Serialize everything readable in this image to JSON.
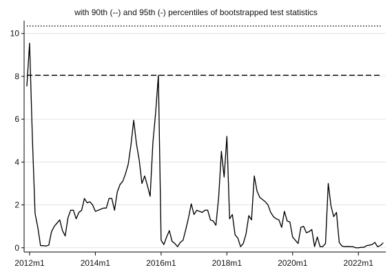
{
  "chart_data": {
    "type": "line",
    "title": "with 90th (--) and 95th (-) percentiles of bootstrapped test statistics",
    "xlabel": "",
    "ylabel": "",
    "grid": true,
    "legend": "none",
    "x_tick_labels": [
      "2012m1",
      "2014m1",
      "2016m1",
      "2018m1",
      "2020m1",
      "2022m1"
    ],
    "x_ticks": [
      "2012-01",
      "2014-01",
      "2016-01",
      "2018-01",
      "2020-01",
      "2022-01"
    ],
    "xlim": [
      "2011-11",
      "2022-11"
    ],
    "y_ticks": [
      0,
      2,
      4,
      6,
      8,
      10
    ],
    "ylim": [
      -0.2,
      10.6
    ],
    "reference_lines": [
      {
        "style": "dashed",
        "value": 8.05
      },
      {
        "style": "dotted",
        "value": 10.35
      }
    ],
    "colors": {
      "line": "#000000",
      "grid": "#e3e3e3",
      "axis": "#000000"
    },
    "series": [
      {
        "x": [
          "2011-12",
          "2012-01",
          "2012-02",
          "2012-03",
          "2012-04",
          "2012-05",
          "2012-06",
          "2012-07",
          "2012-08",
          "2012-09",
          "2012-10",
          "2012-11",
          "2012-12",
          "2013-01",
          "2013-02",
          "2013-03",
          "2013-04",
          "2013-05",
          "2013-06",
          "2013-07",
          "2013-08",
          "2013-09",
          "2013-10",
          "2013-11",
          "2013-12",
          "2014-01",
          "2014-02",
          "2014-03",
          "2014-04",
          "2014-05",
          "2014-06",
          "2014-07",
          "2014-08",
          "2014-09",
          "2014-10",
          "2014-11",
          "2014-12",
          "2015-01",
          "2015-02",
          "2015-03",
          "2015-04",
          "2015-05",
          "2015-06",
          "2015-07",
          "2015-08",
          "2015-09",
          "2015-10",
          "2015-11",
          "2015-12",
          "2016-01",
          "2016-02",
          "2016-03",
          "2016-04",
          "2016-05",
          "2016-06",
          "2016-07",
          "2016-08",
          "2016-09",
          "2016-10",
          "2016-11",
          "2016-12",
          "2017-01",
          "2017-02",
          "2017-03",
          "2017-04",
          "2017-05",
          "2017-06",
          "2017-07",
          "2017-08",
          "2017-09",
          "2017-10",
          "2017-11",
          "2017-12",
          "2018-01",
          "2018-02",
          "2018-03",
          "2018-04",
          "2018-05",
          "2018-06",
          "2018-07",
          "2018-08",
          "2018-09",
          "2018-10",
          "2018-11",
          "2018-12",
          "2019-01",
          "2019-02",
          "2019-03",
          "2019-04",
          "2019-05",
          "2019-06",
          "2019-07",
          "2019-08",
          "2019-09",
          "2019-10",
          "2019-11",
          "2019-12",
          "2020-01",
          "2020-02",
          "2020-03",
          "2020-04",
          "2020-05",
          "2020-06",
          "2020-07",
          "2020-08",
          "2020-09",
          "2020-10",
          "2020-11",
          "2020-12",
          "2021-01",
          "2021-02",
          "2021-03",
          "2021-04",
          "2021-05",
          "2021-06",
          "2021-07",
          "2021-08",
          "2021-09",
          "2021-10",
          "2021-11",
          "2021-12",
          "2022-01",
          "2022-02",
          "2022-03",
          "2022-04",
          "2022-05",
          "2022-06",
          "2022-07",
          "2022-08",
          "2022-09",
          "2022-10"
        ],
        "values": [
          7.55,
          9.55,
          5.2,
          1.6,
          0.95,
          0.1,
          0.1,
          0.08,
          0.12,
          0.75,
          1.0,
          1.15,
          1.3,
          0.8,
          0.55,
          1.4,
          1.75,
          1.75,
          1.35,
          1.65,
          1.75,
          2.3,
          2.1,
          2.15,
          2.0,
          1.7,
          1.75,
          1.8,
          1.85,
          1.85,
          2.3,
          2.3,
          1.75,
          2.6,
          2.95,
          3.1,
          3.45,
          3.9,
          4.8,
          5.95,
          4.85,
          4.1,
          3.0,
          3.35,
          2.9,
          2.4,
          4.9,
          6.3,
          8.05,
          0.35,
          0.15,
          0.5,
          0.8,
          0.3,
          0.2,
          0.05,
          0.25,
          0.35,
          0.85,
          1.4,
          2.05,
          1.55,
          1.75,
          1.7,
          1.65,
          1.75,
          1.75,
          1.3,
          1.25,
          1.05,
          2.35,
          4.5,
          3.3,
          5.2,
          1.35,
          1.55,
          0.6,
          0.45,
          0.05,
          0.2,
          0.65,
          1.5,
          1.3,
          3.35,
          2.65,
          2.35,
          2.25,
          2.15,
          2.0,
          1.65,
          1.45,
          1.35,
          1.3,
          0.95,
          1.7,
          1.25,
          1.2,
          0.5,
          0.35,
          0.2,
          0.95,
          1.0,
          0.7,
          0.75,
          0.85,
          0.05,
          0.5,
          0.05,
          0.05,
          0.2,
          3.0,
          1.95,
          1.45,
          1.65,
          0.25,
          0.08,
          0.05,
          0.06,
          0.05,
          0.05,
          0.0,
          0.0,
          0.02,
          0.02,
          0.1,
          0.12,
          0.15,
          0.25,
          0.05,
          0.1,
          0.22
        ]
      }
    ]
  }
}
